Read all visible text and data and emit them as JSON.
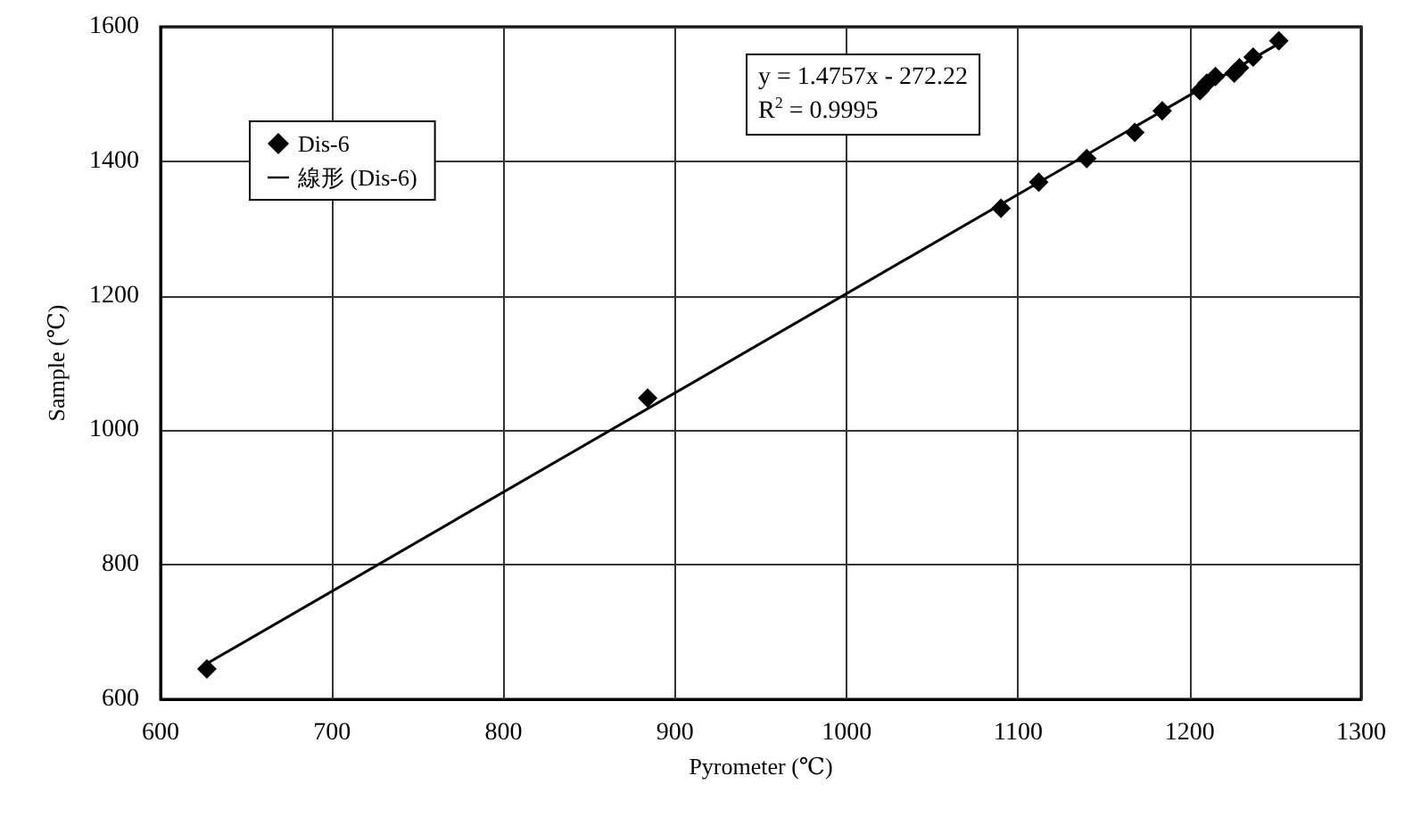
{
  "chart_data": {
    "type": "scatter",
    "xlabel": "Pyrometer (℃)",
    "ylabel": "Sample (℃)",
    "xlim": [
      600,
      1300
    ],
    "xticks": [
      600,
      700,
      800,
      900,
      1000,
      1100,
      1200,
      1300
    ],
    "ylim": [
      600,
      1600
    ],
    "yticks": [
      600,
      800,
      1000,
      1200,
      1400,
      1600
    ],
    "grid": true,
    "legend": "top left",
    "marker": "diamond",
    "annotations": [
      "y = 1.4757x - 272.22",
      "R$^{2}$ = 0.9995"
    ],
    "series": [
      {
        "name": "Dis-6",
        "color": "#000000",
        "x": [
          627,
          884,
          1090,
          1112,
          1140,
          1168,
          1184,
          1206,
          1210,
          1215,
          1226,
          1229,
          1237,
          1252
        ],
        "values": [
          645,
          1048,
          1330,
          1369,
          1404,
          1443,
          1475,
          1505,
          1516,
          1526,
          1531,
          1539,
          1555,
          1579
        ]
      },
      {
        "name": "線形 (Dis-6)",
        "type": "line",
        "color": "#000000",
        "marker": "none",
        "line_style": "solid",
        "x": [
          627,
          1252
        ],
        "values": [
          653,
          1575
        ]
      }
    ]
  }
}
